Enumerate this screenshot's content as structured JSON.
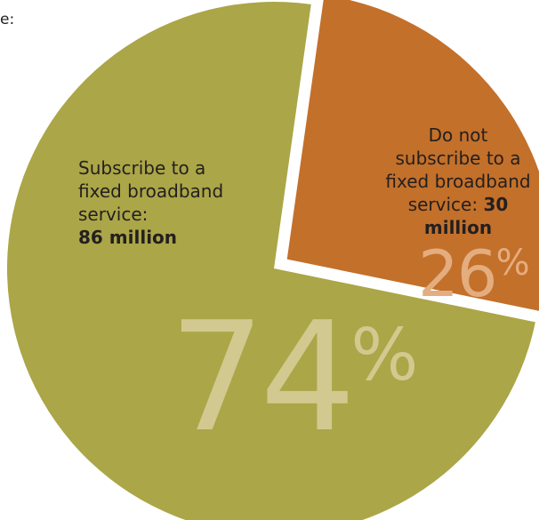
{
  "header_fragment": "e:",
  "colors": {
    "subscribe": "#aba647",
    "not_subscribe": "#c3702a",
    "background": "#ffffff"
  },
  "chart_data": {
    "type": "pie",
    "slices": [
      {
        "label_lines": [
          "Subscribe to a",
          "fixed broadband",
          "service:"
        ],
        "value_text": "86 million",
        "value": 86,
        "percent": 74,
        "percent_text": "74",
        "color": "#aba647"
      },
      {
        "label_lines": [
          "Do not",
          "subscribe to a",
          "fixed broadband",
          "service:"
        ],
        "value_text": "30 million",
        "value": 30,
        "percent": 26,
        "percent_text": "26",
        "color": "#c3702a"
      }
    ],
    "percent_sign": "%"
  }
}
